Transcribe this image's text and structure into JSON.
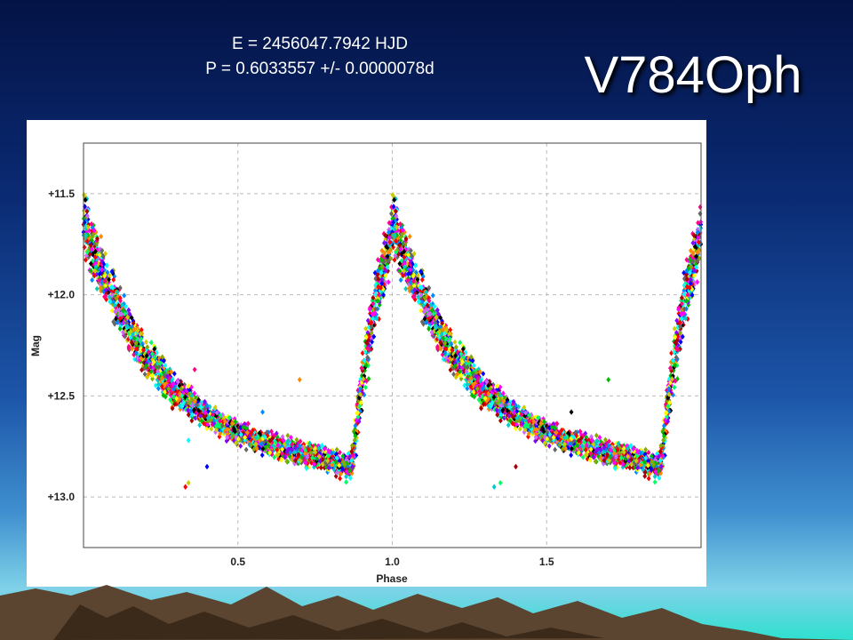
{
  "header": {
    "epoch_text": "E = 2456047.7942  HJD",
    "period_text": "P = 0.6033557  +/- 0.0000078d",
    "title": "V784Oph"
  },
  "colors": {
    "background_top": "#041346",
    "background_bottom": "#2ee0cf",
    "plot_background": "#ffffff",
    "grid": "#bbbbbb"
  },
  "chart_data": {
    "type": "scatter",
    "title": "",
    "xlabel": "Phase",
    "ylabel": "Mag",
    "xlim": [
      0.0,
      2.0
    ],
    "ylim": [
      13.25,
      11.25
    ],
    "y_inverted": true,
    "grid": true,
    "legend": "none",
    "x_ticks": [
      {
        "value": 0.5,
        "label": "0.5"
      },
      {
        "value": 1.0,
        "label": "1.0"
      },
      {
        "value": 1.5,
        "label": "1.5"
      }
    ],
    "y_ticks": [
      {
        "value": 11.5,
        "label": "+11.5"
      },
      {
        "value": 12.0,
        "label": "+12.0"
      },
      {
        "value": 12.5,
        "label": "+12.5"
      },
      {
        "value": 13.0,
        "label": "+13.0"
      }
    ],
    "light_curve": {
      "phase": [
        0.0,
        0.02,
        0.05,
        0.1,
        0.15,
        0.2,
        0.3,
        0.4,
        0.5,
        0.6,
        0.7,
        0.8,
        0.85,
        0.87,
        0.9,
        0.95,
        1.0
      ],
      "mean_mag": [
        11.65,
        11.72,
        11.85,
        12.02,
        12.17,
        12.3,
        12.48,
        12.6,
        12.68,
        12.74,
        12.78,
        12.82,
        12.85,
        12.83,
        12.45,
        12.0,
        11.68
      ],
      "scatter": [
        0.22,
        0.22,
        0.2,
        0.17,
        0.15,
        0.13,
        0.11,
        0.09,
        0.08,
        0.08,
        0.08,
        0.08,
        0.08,
        0.12,
        0.2,
        0.22,
        0.22
      ]
    },
    "point_colors": [
      "#ff0000",
      "#00bb00",
      "#0000ff",
      "#ff00ff",
      "#00cccc",
      "#cccc00",
      "#000000",
      "#ff8800",
      "#8800ff",
      "#00ff66",
      "#ff0088",
      "#666666",
      "#0088ff",
      "#88aa00",
      "#aa0000",
      "#00ffff",
      "#ffff00",
      "#cc66ff"
    ],
    "outliers": [
      {
        "phase": 0.33,
        "mag": 12.95
      },
      {
        "phase": 0.34,
        "mag": 12.93
      },
      {
        "phase": 0.36,
        "mag": 12.37
      },
      {
        "phase": 0.34,
        "mag": 12.72
      },
      {
        "phase": 0.4,
        "mag": 12.85
      },
      {
        "phase": 0.7,
        "mag": 12.42
      },
      {
        "phase": 0.58,
        "mag": 12.58
      },
      {
        "phase": 0.82,
        "mag": 12.88
      },
      {
        "phase": 1.33,
        "mag": 12.95
      },
      {
        "phase": 1.35,
        "mag": 12.93
      },
      {
        "phase": 1.4,
        "mag": 12.85
      },
      {
        "phase": 1.7,
        "mag": 12.42
      },
      {
        "phase": 1.58,
        "mag": 12.58
      }
    ]
  }
}
